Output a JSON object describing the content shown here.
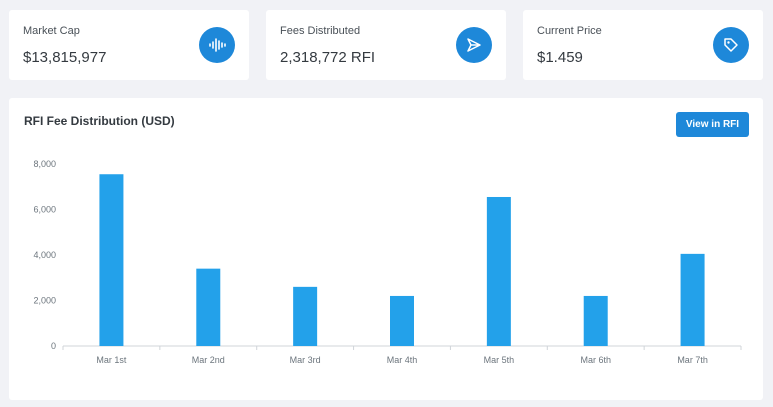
{
  "cards": [
    {
      "label": "Market Cap",
      "value": "$13,815,977",
      "icon": "waveform-icon"
    },
    {
      "label": "Fees Distributed",
      "value": "2,318,772 RFI",
      "icon": "send-icon"
    },
    {
      "label": "Current Price",
      "value": "$1.459",
      "icon": "tag-icon"
    }
  ],
  "colors": {
    "accent": "#1e88d9",
    "bar": "#23a1ea"
  },
  "chart_panel": {
    "title": "RFI Fee Distribution (USD)",
    "button_label": "View in RFI"
  },
  "chart_data": {
    "type": "bar",
    "categories": [
      "Mar 1st",
      "Mar 2nd",
      "Mar 3rd",
      "Mar 4th",
      "Mar 5th",
      "Mar 6th",
      "Mar 7th"
    ],
    "values": [
      7550,
      3400,
      2600,
      2200,
      6550,
      2200,
      4050
    ],
    "yticks": [
      "0",
      "2,000",
      "4,000",
      "6,000",
      "8,000"
    ],
    "ylim": [
      0,
      8000
    ],
    "grid": false,
    "legend": "none"
  }
}
